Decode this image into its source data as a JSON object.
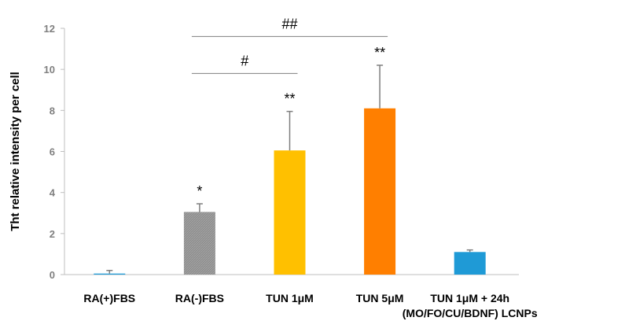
{
  "chart_data": {
    "type": "bar",
    "ylabel": "Tht relative intensity per cell",
    "ylim": [
      0,
      12
    ],
    "yticks": [
      0,
      2,
      4,
      6,
      8,
      10,
      12
    ],
    "grid": false,
    "categories": [
      [
        "RA(+)FBS"
      ],
      [
        "RA(-)FBS"
      ],
      [
        "TUN 1μM"
      ],
      [
        "TUN 5μM"
      ],
      [
        "TUN 1μM + 24h",
        "(MO/FO/CU/BDNF) LCNPs"
      ]
    ],
    "values": [
      0.05,
      3.05,
      6.05,
      8.1,
      1.1
    ],
    "errors": [
      0.15,
      0.4,
      1.9,
      2.1,
      0.1
    ],
    "colors": [
      "#1f9ad6",
      "#8c8c8c",
      "#ffc000",
      "#ff7f00",
      "#1f9ad6"
    ],
    "patterns": [
      "solid",
      "hatched",
      "solid",
      "solid",
      "solid"
    ],
    "annotations": [
      "",
      "*",
      "**",
      "**",
      ""
    ],
    "brackets": [
      {
        "from": 1,
        "to": 2,
        "label": "#",
        "y": 9.8
      },
      {
        "from": 1,
        "to": 3,
        "label": "##",
        "y": 11.6
      }
    ]
  }
}
